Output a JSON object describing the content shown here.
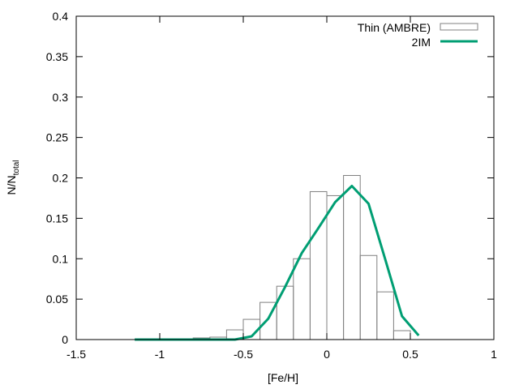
{
  "chart_data": {
    "type": "bar",
    "xlabel": "[Fe/H]",
    "ylabel": {
      "main": "N/N",
      "sub": "total"
    },
    "xlim": [
      -1.5,
      1
    ],
    "ylim": [
      0,
      0.4
    ],
    "xticks": [
      -1.5,
      -1,
      -0.5,
      0,
      0.5,
      1
    ],
    "yticks": [
      0,
      0.05,
      0.1,
      0.15,
      0.2,
      0.25,
      0.3,
      0.35,
      0.4
    ],
    "xtick_labels": [
      "-1.5",
      "-1",
      "-0.5",
      "0",
      "0.5",
      "1"
    ],
    "ytick_labels": [
      "0",
      "0.05",
      "0.1",
      "0.15",
      "0.2",
      "0.25",
      "0.3",
      "0.35",
      "0.4"
    ],
    "grid": false,
    "legend": {
      "position": "top-right",
      "entries": [
        "Thin (AMBRE)",
        "2IM"
      ]
    },
    "series": [
      {
        "name": "Thin (AMBRE)",
        "kind": "histogram",
        "bin_width": 0.1,
        "color": "#808080",
        "bin_starts": [
          -0.8,
          -0.7,
          -0.6,
          -0.5,
          -0.4,
          -0.3,
          -0.2,
          -0.1,
          0.0,
          0.1,
          0.2,
          0.3,
          0.4
        ],
        "values": [
          0.002,
          0.003,
          0.012,
          0.025,
          0.046,
          0.066,
          0.1,
          0.183,
          0.178,
          0.203,
          0.104,
          0.059,
          0.011
        ]
      },
      {
        "name": "2IM",
        "kind": "line",
        "color": "#009e73",
        "x": [
          -1.15,
          -1.05,
          -0.95,
          -0.85,
          -0.75,
          -0.65,
          -0.55,
          -0.45,
          -0.35,
          -0.25,
          -0.15,
          -0.05,
          0.05,
          0.15,
          0.25,
          0.35,
          0.45,
          0.55
        ],
        "values": [
          0,
          0,
          0,
          0,
          0,
          0,
          0,
          0.004,
          0.026,
          0.065,
          0.107,
          0.138,
          0.17,
          0.19,
          0.168,
          0.099,
          0.029,
          0.005
        ]
      }
    ]
  }
}
